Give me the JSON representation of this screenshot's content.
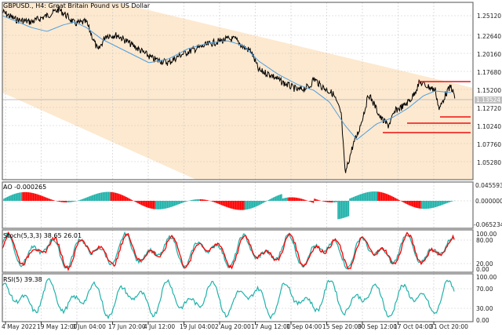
{
  "title": "GBPUSD., H4:  Great Britain Pound vs US Dollar",
  "colors": {
    "channel_fill": "#fde9cf",
    "price_line": "#000000",
    "ma_line": "#4f9fe0",
    "support_lines": "#ee1111",
    "ao_up": "#20b2aa",
    "ao_down": "#ff0000",
    "stoch_main": "#20b2aa",
    "stoch_signal": "#ff0000",
    "rsi_line": "#20b2aa",
    "grid": "#c8c8c8",
    "current_price_line": "#c0c0c0"
  },
  "main_panel": {
    "y_axis": [
      "1.25120",
      "1.22640",
      "1.20160",
      "1.17680",
      "1.15200",
      "1.12720",
      "1.10240",
      "1.07760",
      "1.05280"
    ],
    "current_price": "1.13524"
  },
  "ao_panel": {
    "label": "AO -0.000265",
    "y_axis": [
      "0.045593",
      "0.000000",
      "-0.065234"
    ]
  },
  "stoch_panel": {
    "label": "Stoch(5,3,3) 38.65 26.01",
    "y_axis": [
      "100.00",
      "80.00",
      "20.00",
      "0.00"
    ]
  },
  "rsi_panel": {
    "label": "RSI(5) 39.38",
    "y_axis": [
      "100.00",
      "70.00",
      "30.00",
      "0.00"
    ]
  },
  "x_axis": [
    "4 May 2022",
    "19 May 12:00",
    "3 Jun 04:00",
    "17 Jun 20:00",
    "4 Jul 12:00",
    "19 Jul 04:00",
    "2 Aug 20:00",
    "17 Aug 12:00",
    "1 Sep 04:00",
    "15 Sep 20:00",
    "30 Sep 12:00",
    "17 Oct 04:00",
    "31 Oct 20:00"
  ],
  "chart_data": [
    {
      "type": "line",
      "title": "GBPUSD., H4: Great Britain Pound vs US Dollar",
      "xlabel": "",
      "ylabel": "Price",
      "ylim": [
        1.035,
        1.265
      ],
      "grid": true,
      "x": [
        "4 May 2022",
        "19 May 12:00",
        "3 Jun 04:00",
        "17 Jun 20:00",
        "4 Jul 12:00",
        "19 Jul 04:00",
        "2 Aug 20:00",
        "17 Aug 12:00",
        "1 Sep 04:00",
        "15 Sep 20:00",
        "30 Sep 12:00",
        "17 Oct 04:00",
        "31 Oct 20:00"
      ],
      "series": [
        {
          "name": "Close",
          "values": [
            1.245,
            1.253,
            1.258,
            1.225,
            1.205,
            1.195,
            1.22,
            1.208,
            1.16,
            1.14,
            1.11,
            1.128,
            1.145
          ]
        },
        {
          "name": "MA",
          "values": [
            1.24,
            1.245,
            1.25,
            1.232,
            1.215,
            1.2,
            1.212,
            1.212,
            1.18,
            1.155,
            1.125,
            1.118,
            1.145
          ]
        }
      ],
      "annotations": [
        "Descending channel (shaded)",
        "Horizontal lines at ~1.160, ~1.117, ~1.108, ~1.099",
        "Low near 1.035 (26 Sep)"
      ],
      "current_price": 1.13524
    },
    {
      "type": "bar",
      "title": "AO -0.000265",
      "ylim": [
        -0.065234,
        0.045593
      ],
      "series": [
        {
          "name": "AO",
          "values": [
            -0.012,
            0.03,
            0.01,
            -0.01,
            0.02,
            -0.015,
            0.025,
            -0.02,
            -0.04,
            -0.06,
            0.03,
            0.02,
            -0.000265
          ]
        }
      ]
    },
    {
      "type": "line",
      "title": "Stoch(5,3,3) 38.65 26.01",
      "ylim": [
        0,
        100
      ],
      "series": [
        {
          "name": "Main",
          "values": [
            50,
            80,
            20,
            85,
            40,
            90,
            30,
            85,
            20,
            80,
            30,
            90,
            38.65
          ]
        },
        {
          "name": "Signal",
          "values": [
            45,
            75,
            25,
            80,
            45,
            85,
            35,
            80,
            25,
            75,
            35,
            85,
            26.01
          ]
        }
      ]
    },
    {
      "type": "line",
      "title": "RSI(5) 39.38",
      "ylim": [
        0,
        100
      ],
      "series": [
        {
          "name": "RSI",
          "values": [
            55,
            70,
            40,
            75,
            20,
            65,
            50,
            70,
            30,
            20,
            65,
            60,
            39.38
          ]
        }
      ]
    }
  ]
}
